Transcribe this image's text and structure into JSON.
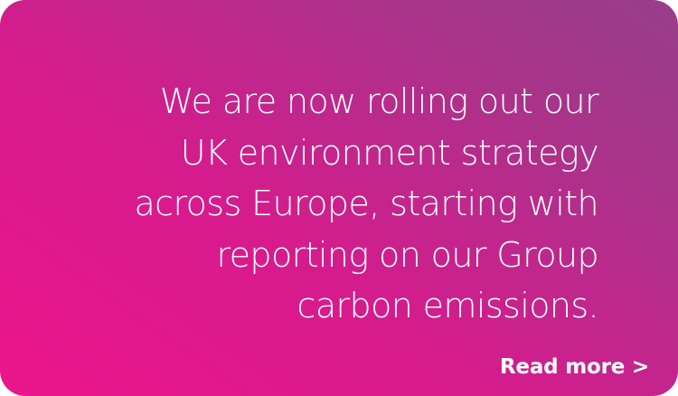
{
  "card": {
    "quote_lines": [
      "We are now rolling out our",
      "UK environment strategy",
      "across Europe, starting with",
      "reporting on our Group",
      "carbon emissions."
    ],
    "link_label": "Read more >"
  },
  "colors": {
    "gradient_start": "#ec168c",
    "gradient_end": "#983e8a",
    "text": "#ffffff"
  }
}
